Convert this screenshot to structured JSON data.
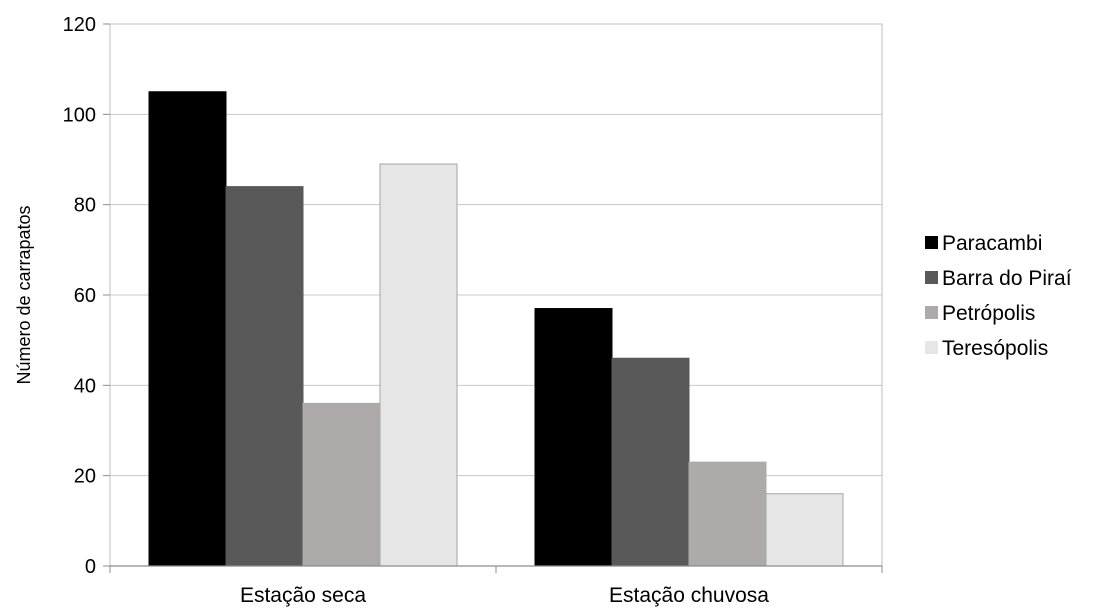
{
  "chart_data": {
    "type": "bar",
    "title": "",
    "xlabel": "",
    "ylabel": "Número de carrapatos",
    "categories": [
      "Estação seca",
      "Estação chuvosa"
    ],
    "series": [
      {
        "name": "Paracambi",
        "values": [
          105,
          57
        ],
        "color": "#000000"
      },
      {
        "name": "Barra do Piraí",
        "values": [
          84,
          46
        ],
        "color": "#595959"
      },
      {
        "name": "Petrópolis",
        "values": [
          36,
          23
        ],
        "color": "#aeaaaa"
      },
      {
        "name": "Teresópolis",
        "values": [
          89,
          16
        ],
        "color": "#e6e6e6"
      }
    ],
    "ylim": [
      0,
      120
    ],
    "yticks": [
      0,
      20,
      40,
      60,
      80,
      100,
      120
    ],
    "grid": true,
    "legend_position": "right"
  }
}
